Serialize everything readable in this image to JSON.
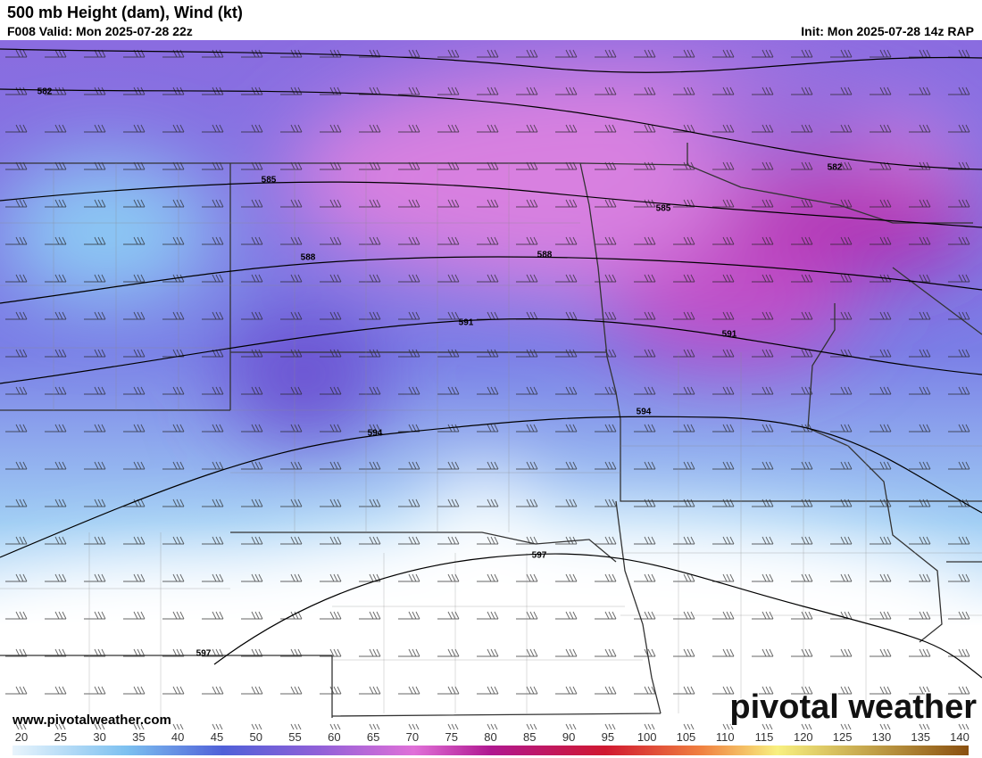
{
  "header": {
    "title": "500 mb Height (dam), Wind (kt)",
    "valid": "F008 Valid: Mon 2025-07-28 22z",
    "init": "Init: Mon 2025-07-28 14z RAP"
  },
  "map": {
    "contour_labels": [
      582,
      582,
      585,
      585,
      588,
      588,
      591,
      591,
      594,
      594,
      597,
      597
    ]
  },
  "colorbar": {
    "ticks": [
      20,
      25,
      30,
      35,
      40,
      45,
      50,
      55,
      60,
      65,
      70,
      75,
      80,
      85,
      90,
      95,
      100,
      105,
      110,
      115,
      120,
      125,
      130,
      135,
      140
    ]
  },
  "footer": {
    "website": "www.pivotalweather.com",
    "logo": "pivotal weather"
  }
}
